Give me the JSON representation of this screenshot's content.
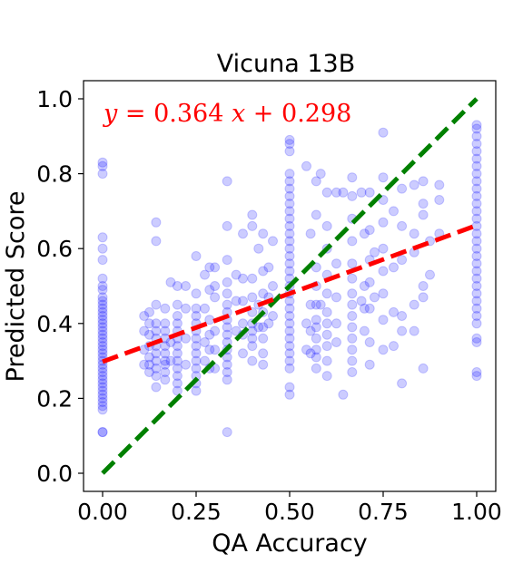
{
  "chart_data": {
    "type": "scatter",
    "title": "Vicuna 13B",
    "xlabel": "QA Accuracy",
    "ylabel": "Predicted Score",
    "xlim": [
      -0.05,
      1.05
    ],
    "ylim": [
      -0.05,
      1.05
    ],
    "xticks": [
      0.0,
      0.25,
      0.5,
      0.75,
      1.0
    ],
    "xtick_labels": [
      "0.00",
      "0.25",
      "0.50",
      "0.75",
      "1.00"
    ],
    "yticks": [
      0.0,
      0.2,
      0.4,
      0.6,
      0.8,
      1.0
    ],
    "ytick_labels": [
      "0.0",
      "0.2",
      "0.4",
      "0.6",
      "0.8",
      "1.0"
    ],
    "grid": false,
    "legend": "none",
    "annotation": {
      "y": "y",
      "slope": "0.364",
      "x": "x",
      "intercept": "0.298",
      "color": "#ff0000"
    },
    "fit_line": {
      "slope": 0.364,
      "intercept": 0.298,
      "x": [
        0,
        1
      ],
      "color": "#ff0000",
      "style": "dashed"
    },
    "identity_line": {
      "x": [
        0,
        1
      ],
      "y": [
        0,
        1
      ],
      "color": "#008000",
      "style": "dashed"
    },
    "point_color": "#0000ff",
    "point_alpha": 0.2,
    "points": [
      [
        0.0,
        0.83
      ],
      [
        0.0,
        0.82
      ],
      [
        0.0,
        0.8
      ],
      [
        0.0,
        0.63
      ],
      [
        0.0,
        0.6
      ],
      [
        0.0,
        0.57
      ],
      [
        0.0,
        0.52
      ],
      [
        0.0,
        0.5
      ],
      [
        0.0,
        0.49
      ],
      [
        0.0,
        0.47
      ],
      [
        0.0,
        0.46
      ],
      [
        0.0,
        0.45
      ],
      [
        0.0,
        0.44
      ],
      [
        0.0,
        0.43
      ],
      [
        0.0,
        0.42
      ],
      [
        0.0,
        0.41
      ],
      [
        0.0,
        0.4
      ],
      [
        0.0,
        0.39
      ],
      [
        0.0,
        0.38
      ],
      [
        0.0,
        0.37
      ],
      [
        0.0,
        0.36
      ],
      [
        0.0,
        0.35
      ],
      [
        0.0,
        0.34
      ],
      [
        0.0,
        0.33
      ],
      [
        0.0,
        0.32
      ],
      [
        0.0,
        0.31
      ],
      [
        0.0,
        0.3
      ],
      [
        0.0,
        0.29
      ],
      [
        0.0,
        0.28
      ],
      [
        0.0,
        0.27
      ],
      [
        0.0,
        0.26
      ],
      [
        0.0,
        0.25
      ],
      [
        0.0,
        0.24
      ],
      [
        0.0,
        0.23
      ],
      [
        0.0,
        0.22
      ],
      [
        0.0,
        0.21
      ],
      [
        0.0,
        0.2
      ],
      [
        0.0,
        0.19
      ],
      [
        0.0,
        0.18
      ],
      [
        0.0,
        0.17
      ],
      [
        0.0,
        0.11
      ],
      [
        0.0,
        0.11
      ],
      [
        0.111,
        0.42
      ],
      [
        0.111,
        0.38
      ],
      [
        0.111,
        0.33
      ],
      [
        0.111,
        0.29
      ],
      [
        0.125,
        0.43
      ],
      [
        0.125,
        0.4
      ],
      [
        0.125,
        0.37
      ],
      [
        0.125,
        0.34
      ],
      [
        0.125,
        0.31
      ],
      [
        0.125,
        0.29
      ],
      [
        0.125,
        0.27
      ],
      [
        0.143,
        0.67
      ],
      [
        0.143,
        0.62
      ],
      [
        0.143,
        0.45
      ],
      [
        0.143,
        0.4
      ],
      [
        0.143,
        0.38
      ],
      [
        0.143,
        0.36
      ],
      [
        0.143,
        0.34
      ],
      [
        0.143,
        0.32
      ],
      [
        0.143,
        0.3
      ],
      [
        0.143,
        0.28
      ],
      [
        0.143,
        0.26
      ],
      [
        0.143,
        0.23
      ],
      [
        0.167,
        0.44
      ],
      [
        0.167,
        0.4
      ],
      [
        0.167,
        0.38
      ],
      [
        0.167,
        0.36
      ],
      [
        0.167,
        0.34
      ],
      [
        0.167,
        0.32
      ],
      [
        0.167,
        0.3
      ],
      [
        0.167,
        0.29
      ],
      [
        0.167,
        0.27
      ],
      [
        0.167,
        0.25
      ],
      [
        0.182,
        0.51
      ],
      [
        0.182,
        0.35
      ],
      [
        0.182,
        0.3
      ],
      [
        0.2,
        0.5
      ],
      [
        0.2,
        0.45
      ],
      [
        0.2,
        0.42
      ],
      [
        0.2,
        0.4
      ],
      [
        0.2,
        0.38
      ],
      [
        0.2,
        0.36
      ],
      [
        0.2,
        0.34
      ],
      [
        0.2,
        0.32
      ],
      [
        0.2,
        0.3
      ],
      [
        0.2,
        0.28
      ],
      [
        0.2,
        0.26
      ],
      [
        0.2,
        0.24
      ],
      [
        0.2,
        0.22
      ],
      [
        0.222,
        0.5
      ],
      [
        0.222,
        0.44
      ],
      [
        0.222,
        0.36
      ],
      [
        0.222,
        0.29
      ],
      [
        0.25,
        0.58
      ],
      [
        0.25,
        0.48
      ],
      [
        0.25,
        0.44
      ],
      [
        0.25,
        0.42
      ],
      [
        0.25,
        0.4
      ],
      [
        0.25,
        0.38
      ],
      [
        0.25,
        0.36
      ],
      [
        0.25,
        0.34
      ],
      [
        0.25,
        0.32
      ],
      [
        0.25,
        0.3
      ],
      [
        0.25,
        0.28
      ],
      [
        0.25,
        0.26
      ],
      [
        0.25,
        0.24
      ],
      [
        0.25,
        0.22
      ],
      [
        0.273,
        0.53
      ],
      [
        0.273,
        0.44
      ],
      [
        0.273,
        0.35
      ],
      [
        0.273,
        0.3
      ],
      [
        0.286,
        0.55
      ],
      [
        0.286,
        0.49
      ],
      [
        0.286,
        0.41
      ],
      [
        0.286,
        0.37
      ],
      [
        0.286,
        0.33
      ],
      [
        0.286,
        0.28
      ],
      [
        0.3,
        0.55
      ],
      [
        0.3,
        0.5
      ],
      [
        0.3,
        0.47
      ],
      [
        0.3,
        0.38
      ],
      [
        0.3,
        0.33
      ],
      [
        0.3,
        0.28
      ],
      [
        0.333,
        0.78
      ],
      [
        0.333,
        0.66
      ],
      [
        0.333,
        0.57
      ],
      [
        0.333,
        0.51
      ],
      [
        0.333,
        0.48
      ],
      [
        0.333,
        0.45
      ],
      [
        0.333,
        0.43
      ],
      [
        0.333,
        0.41
      ],
      [
        0.333,
        0.39
      ],
      [
        0.333,
        0.37
      ],
      [
        0.333,
        0.35
      ],
      [
        0.333,
        0.33
      ],
      [
        0.333,
        0.31
      ],
      [
        0.333,
        0.29
      ],
      [
        0.333,
        0.27
      ],
      [
        0.333,
        0.25
      ],
      [
        0.333,
        0.11
      ],
      [
        0.357,
        0.53
      ],
      [
        0.357,
        0.46
      ],
      [
        0.357,
        0.38
      ],
      [
        0.375,
        0.64
      ],
      [
        0.375,
        0.52
      ],
      [
        0.375,
        0.46
      ],
      [
        0.375,
        0.4
      ],
      [
        0.375,
        0.37
      ],
      [
        0.375,
        0.32
      ],
      [
        0.4,
        0.69
      ],
      [
        0.4,
        0.66
      ],
      [
        0.4,
        0.52
      ],
      [
        0.4,
        0.47
      ],
      [
        0.4,
        0.43
      ],
      [
        0.4,
        0.4
      ],
      [
        0.4,
        0.38
      ],
      [
        0.4,
        0.36
      ],
      [
        0.4,
        0.34
      ],
      [
        0.4,
        0.3
      ],
      [
        0.417,
        0.6
      ],
      [
        0.417,
        0.45
      ],
      [
        0.417,
        0.39
      ],
      [
        0.429,
        0.64
      ],
      [
        0.429,
        0.54
      ],
      [
        0.429,
        0.48
      ],
      [
        0.429,
        0.43
      ],
      [
        0.429,
        0.39
      ],
      [
        0.429,
        0.36
      ],
      [
        0.429,
        0.32
      ],
      [
        0.429,
        0.29
      ],
      [
        0.444,
        0.55
      ],
      [
        0.444,
        0.47
      ],
      [
        0.444,
        0.4
      ],
      [
        0.455,
        0.62
      ],
      [
        0.455,
        0.5
      ],
      [
        0.455,
        0.42
      ],
      [
        0.5,
        0.89
      ],
      [
        0.5,
        0.88
      ],
      [
        0.5,
        0.86
      ],
      [
        0.5,
        0.8
      ],
      [
        0.5,
        0.78
      ],
      [
        0.5,
        0.76
      ],
      [
        0.5,
        0.74
      ],
      [
        0.5,
        0.72
      ],
      [
        0.5,
        0.7
      ],
      [
        0.5,
        0.68
      ],
      [
        0.5,
        0.66
      ],
      [
        0.5,
        0.64
      ],
      [
        0.5,
        0.62
      ],
      [
        0.5,
        0.6
      ],
      [
        0.5,
        0.58
      ],
      [
        0.5,
        0.56
      ],
      [
        0.5,
        0.54
      ],
      [
        0.5,
        0.52
      ],
      [
        0.5,
        0.5
      ],
      [
        0.5,
        0.48
      ],
      [
        0.5,
        0.46
      ],
      [
        0.5,
        0.44
      ],
      [
        0.5,
        0.42
      ],
      [
        0.5,
        0.4
      ],
      [
        0.5,
        0.38
      ],
      [
        0.5,
        0.36
      ],
      [
        0.5,
        0.34
      ],
      [
        0.5,
        0.32
      ],
      [
        0.5,
        0.3
      ],
      [
        0.5,
        0.28
      ],
      [
        0.5,
        0.23
      ],
      [
        0.5,
        0.21
      ],
      [
        0.545,
        0.82
      ],
      [
        0.545,
        0.4
      ],
      [
        0.545,
        0.33
      ],
      [
        0.556,
        0.64
      ],
      [
        0.556,
        0.45
      ],
      [
        0.556,
        0.38
      ],
      [
        0.556,
        0.32
      ],
      [
        0.571,
        0.78
      ],
      [
        0.571,
        0.69
      ],
      [
        0.571,
        0.55
      ],
      [
        0.571,
        0.5
      ],
      [
        0.571,
        0.45
      ],
      [
        0.571,
        0.41
      ],
      [
        0.571,
        0.39
      ],
      [
        0.571,
        0.36
      ],
      [
        0.571,
        0.33
      ],
      [
        0.571,
        0.31
      ],
      [
        0.571,
        0.28
      ],
      [
        0.583,
        0.8
      ],
      [
        0.583,
        0.45
      ],
      [
        0.6,
        0.75
      ],
      [
        0.6,
        0.66
      ],
      [
        0.6,
        0.6
      ],
      [
        0.6,
        0.53
      ],
      [
        0.6,
        0.48
      ],
      [
        0.6,
        0.43
      ],
      [
        0.6,
        0.4
      ],
      [
        0.6,
        0.37
      ],
      [
        0.6,
        0.34
      ],
      [
        0.6,
        0.3
      ],
      [
        0.6,
        0.26
      ],
      [
        0.625,
        0.75
      ],
      [
        0.625,
        0.56
      ],
      [
        0.625,
        0.47
      ],
      [
        0.625,
        0.4
      ],
      [
        0.625,
        0.35
      ],
      [
        0.643,
        0.75
      ],
      [
        0.643,
        0.21
      ],
      [
        0.667,
        0.79
      ],
      [
        0.667,
        0.74
      ],
      [
        0.667,
        0.68
      ],
      [
        0.667,
        0.62
      ],
      [
        0.667,
        0.56
      ],
      [
        0.667,
        0.52
      ],
      [
        0.667,
        0.48
      ],
      [
        0.667,
        0.45
      ],
      [
        0.667,
        0.42
      ],
      [
        0.667,
        0.39
      ],
      [
        0.667,
        0.36
      ],
      [
        0.667,
        0.33
      ],
      [
        0.667,
        0.3
      ],
      [
        0.667,
        0.27
      ],
      [
        0.692,
        0.75
      ],
      [
        0.692,
        0.46
      ],
      [
        0.7,
        0.64
      ],
      [
        0.7,
        0.5
      ],
      [
        0.7,
        0.44
      ],
      [
        0.7,
        0.38
      ],
      [
        0.714,
        0.75
      ],
      [
        0.714,
        0.65
      ],
      [
        0.714,
        0.57
      ],
      [
        0.714,
        0.51
      ],
      [
        0.714,
        0.44
      ],
      [
        0.714,
        0.35
      ],
      [
        0.714,
        0.29
      ],
      [
        0.727,
        0.59
      ],
      [
        0.727,
        0.47
      ],
      [
        0.75,
        0.91
      ],
      [
        0.75,
        0.79
      ],
      [
        0.75,
        0.73
      ],
      [
        0.75,
        0.67
      ],
      [
        0.75,
        0.6
      ],
      [
        0.75,
        0.54
      ],
      [
        0.75,
        0.48
      ],
      [
        0.75,
        0.41
      ],
      [
        0.75,
        0.33
      ],
      [
        0.778,
        0.7
      ],
      [
        0.778,
        0.55
      ],
      [
        0.778,
        0.43
      ],
      [
        0.778,
        0.34
      ],
      [
        0.8,
        0.76
      ],
      [
        0.8,
        0.66
      ],
      [
        0.8,
        0.57
      ],
      [
        0.8,
        0.42
      ],
      [
        0.8,
        0.38
      ],
      [
        0.8,
        0.24
      ],
      [
        0.833,
        0.77
      ],
      [
        0.833,
        0.64
      ],
      [
        0.833,
        0.59
      ],
      [
        0.833,
        0.45
      ],
      [
        0.833,
        0.38
      ],
      [
        0.857,
        0.78
      ],
      [
        0.857,
        0.72
      ],
      [
        0.857,
        0.69
      ],
      [
        0.857,
        0.5
      ],
      [
        0.857,
        0.47
      ],
      [
        0.857,
        0.28
      ],
      [
        0.875,
        0.62
      ],
      [
        0.875,
        0.53
      ],
      [
        0.9,
        0.77
      ],
      [
        0.9,
        0.73
      ],
      [
        0.9,
        0.64
      ],
      [
        1.0,
        0.93
      ],
      [
        1.0,
        0.92
      ],
      [
        1.0,
        0.9
      ],
      [
        1.0,
        0.88
      ],
      [
        1.0,
        0.86
      ],
      [
        1.0,
        0.84
      ],
      [
        1.0,
        0.82
      ],
      [
        1.0,
        0.8
      ],
      [
        1.0,
        0.78
      ],
      [
        1.0,
        0.76
      ],
      [
        1.0,
        0.74
      ],
      [
        1.0,
        0.72
      ],
      [
        1.0,
        0.7
      ],
      [
        1.0,
        0.68
      ],
      [
        1.0,
        0.66
      ],
      [
        1.0,
        0.64
      ],
      [
        1.0,
        0.62
      ],
      [
        1.0,
        0.6
      ],
      [
        1.0,
        0.58
      ],
      [
        1.0,
        0.56
      ],
      [
        1.0,
        0.54
      ],
      [
        1.0,
        0.52
      ],
      [
        1.0,
        0.5
      ],
      [
        1.0,
        0.48
      ],
      [
        1.0,
        0.46
      ],
      [
        1.0,
        0.44
      ],
      [
        1.0,
        0.42
      ],
      [
        1.0,
        0.4
      ],
      [
        1.0,
        0.36
      ],
      [
        1.0,
        0.35
      ],
      [
        1.0,
        0.27
      ],
      [
        1.0,
        0.26
      ]
    ]
  }
}
